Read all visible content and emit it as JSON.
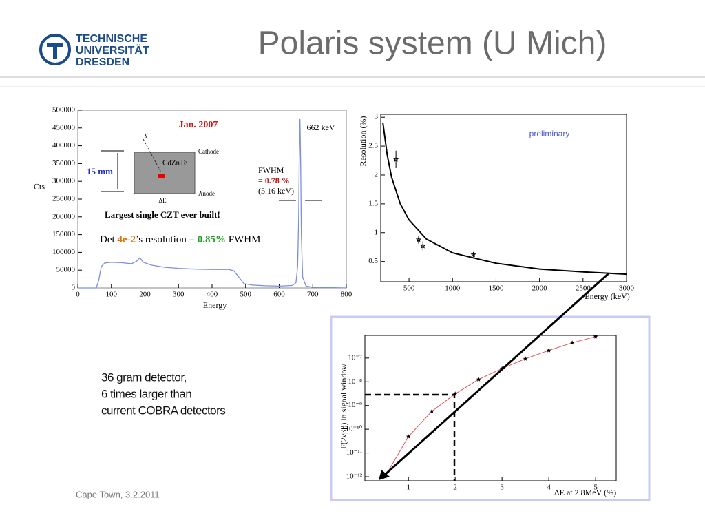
{
  "header": {
    "title": "Polaris system (U Mich)",
    "logo": [
      "TECHNISCHE",
      "UNIVERSITÄT",
      "DRESDEN"
    ]
  },
  "notes": [
    "36 gram detector,",
    "6 times larger than",
    "current COBRA detectors"
  ],
  "footer": "Cape Town, 3.2.2011",
  "chart_data": [
    {
      "type": "line",
      "x_label": "Energy",
      "y_label": "Cts",
      "x": [
        0,
        55,
        62,
        70,
        80,
        100,
        130,
        160,
        175,
        185,
        195,
        220,
        260,
        300,
        350,
        400,
        450,
        465,
        480,
        495,
        520,
        560,
        600,
        640,
        650,
        655,
        658,
        660,
        662,
        664,
        666,
        670,
        680,
        700,
        800
      ],
      "series": [
        {
          "color": "#7b8fe0",
          "values": [
            0,
            0,
            20000,
            60000,
            70000,
            72000,
            71000,
            68000,
            75000,
            85000,
            72000,
            64000,
            58000,
            55000,
            53000,
            52000,
            52000,
            48000,
            30000,
            12000,
            8000,
            6000,
            5000,
            7000,
            15000,
            60000,
            200000,
            400000,
            475000,
            350000,
            150000,
            30000,
            5000,
            2000,
            0
          ]
        }
      ],
      "xlim": [
        0,
        800
      ],
      "xticks": [
        0,
        100,
        200,
        300,
        400,
        500,
        600,
        700,
        800
      ],
      "ylim": [
        0,
        500000
      ],
      "yticks": [
        0,
        50000,
        100000,
        150000,
        200000,
        250000,
        300000,
        350000,
        400000,
        450000,
        500000
      ],
      "annotations": [
        "Jan. 2007",
        "662 keV",
        "FWHM",
        "=",
        "0.78 %",
        "(5.16 keV)",
        "γ",
        "Cathode",
        "CdZnTe",
        "Anode",
        "15 mm",
        "ΔE",
        "Largest single CZT ever built!",
        "Det",
        "4e-2",
        "’s resolution =",
        "0.85%",
        "FWHM"
      ]
    },
    {
      "type": "scatter",
      "x_label": "Energy (keV)",
      "y_label": "Resolution (%)",
      "series": [
        {
          "type": "line",
          "color": "#000000",
          "x": [
            200,
            250,
            300,
            400,
            500,
            700,
            1000,
            1500,
            2000,
            2500,
            3000
          ],
          "values": [
            2.9,
            2.34,
            1.96,
            1.5,
            1.22,
            0.89,
            0.65,
            0.47,
            0.37,
            0.32,
            0.28
          ]
        },
        {
          "type": "scatter",
          "color": "#000000",
          "x": [
            350,
            610,
            660,
            1240
          ],
          "values": [
            2.27,
            0.88,
            0.77,
            0.62
          ],
          "errors": [
            0.15,
            0.07,
            0.08,
            0.04
          ]
        }
      ],
      "xlim": [
        175,
        3000
      ],
      "xticks": [
        500,
        1000,
        1500,
        2000,
        2500,
        3000
      ],
      "ylim": [
        0.15,
        3.05
      ],
      "yticks": [
        0.5,
        1,
        1.5,
        2,
        2.5,
        3
      ],
      "annotations": [
        "preliminary"
      ]
    },
    {
      "type": "line",
      "x_label": "ΔE at 2.8MeV (%)",
      "y_label": "F(2νββ) in signal window",
      "log_scale_y": true,
      "series": [
        {
          "line_color": "#e05050",
          "marker_color": "#000000",
          "x": [
            0.5,
            1,
            1.5,
            2,
            2.5,
            3,
            3.5,
            4,
            4.5,
            5
          ],
          "values": [
            1e-12,
            4.9e-11,
            5.7e-10,
            3.1e-09,
            1.26e-08,
            3.6e-08,
            9.3e-08,
            2.1e-07,
            4.4e-07,
            8e-07
          ]
        }
      ],
      "xlim": [
        0.07,
        5.44
      ],
      "xticks": [
        1,
        2,
        3,
        4,
        5
      ],
      "ylim": [
        6.7e-13,
        9e-07
      ],
      "yticks": [
        {
          "value": 1e-12,
          "label": "10⁻¹²"
        },
        {
          "value": 1e-11,
          "label": "10⁻¹¹"
        },
        {
          "value": 1e-10,
          "label": "10⁻¹⁰"
        },
        {
          "value": 1e-09,
          "label": "10⁻⁹"
        },
        {
          "value": 1e-08,
          "label": "10⁻⁸"
        },
        {
          "value": 1e-07,
          "label": "10⁻⁷"
        }
      ]
    }
  ]
}
